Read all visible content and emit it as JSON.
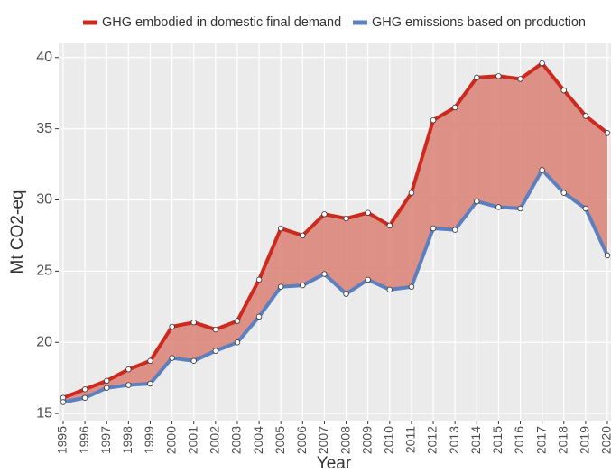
{
  "chart_data": {
    "type": "line",
    "x": [
      1995,
      1996,
      1997,
      1998,
      1999,
      2000,
      2001,
      2002,
      2003,
      2004,
      2005,
      2006,
      2007,
      2008,
      2009,
      2010,
      2011,
      2012,
      2013,
      2014,
      2015,
      2016,
      2017,
      2018,
      2019,
      2020
    ],
    "series": [
      {
        "name": "GHG embodied in domestic final demand",
        "color": "#cc2a1e",
        "values": [
          16.1,
          16.7,
          17.3,
          18.1,
          18.7,
          21.1,
          21.4,
          20.9,
          21.5,
          24.4,
          28.0,
          27.5,
          29.0,
          28.7,
          29.1,
          28.2,
          30.5,
          35.6,
          36.5,
          38.6,
          38.7,
          38.5,
          39.6,
          37.7,
          35.9,
          34.7
        ]
      },
      {
        "name": "GHG emissions based on production",
        "color": "#5b7fbf",
        "values": [
          15.8,
          16.1,
          16.8,
          17.0,
          17.1,
          18.9,
          18.7,
          19.4,
          20.0,
          21.8,
          23.9,
          24.0,
          24.8,
          23.4,
          24.4,
          23.7,
          23.9,
          28.0,
          27.9,
          29.9,
          29.5,
          29.4,
          32.1,
          30.5,
          29.4,
          26.1
        ]
      }
    ],
    "fill_between_color": "#d98074",
    "xlabel": "Year",
    "ylabel": "Mt CO2-eq",
    "xlim": [
      1995,
      2020
    ],
    "xticks": [
      1995,
      1996,
      1997,
      1998,
      1999,
      2000,
      2001,
      2002,
      2003,
      2004,
      2005,
      2006,
      2007,
      2008,
      2009,
      2010,
      2011,
      2012,
      2013,
      2014,
      2015,
      2016,
      2017,
      2018,
      2019,
      2020
    ],
    "ylim": [
      14.5,
      41
    ],
    "yticks": [
      15,
      20,
      25,
      30,
      35,
      40
    ],
    "grid": true,
    "legend_position": "top"
  }
}
